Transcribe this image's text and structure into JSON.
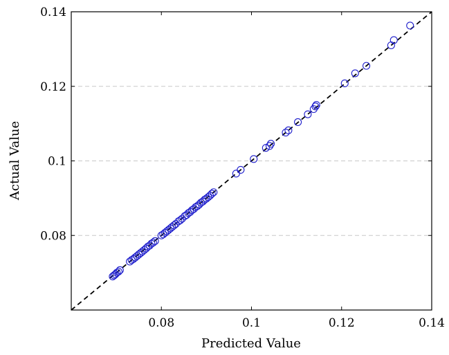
{
  "chart_data": {
    "type": "scatter",
    "xlabel": "Predicted Value",
    "ylabel": "Actual Value",
    "xlim": [
      0.06,
      0.14
    ],
    "ylim": [
      0.06,
      0.14
    ],
    "x_ticks": [
      {
        "value": 0.08,
        "label": "0.08"
      },
      {
        "value": 0.1,
        "label": "0.1"
      },
      {
        "value": 0.12,
        "label": "0.12"
      },
      {
        "value": 0.14,
        "label": "0.14"
      }
    ],
    "y_ticks": [
      {
        "value": 0.08,
        "label": "0.08"
      },
      {
        "value": 0.1,
        "label": "0.1"
      },
      {
        "value": 0.12,
        "label": "0.12"
      },
      {
        "value": 0.14,
        "label": "0.14"
      }
    ],
    "grid": "horizontal-dashed",
    "reference_line": {
      "style": "dashed",
      "from": [
        0.06,
        0.06
      ],
      "to": [
        0.14,
        0.14
      ]
    },
    "marker_color": "#1f1fcc",
    "grid_color": "#c8c8c8",
    "series": [
      {
        "points": [
          [
            0.0692,
            0.069
          ],
          [
            0.0695,
            0.0693
          ],
          [
            0.0698,
            0.0696
          ],
          [
            0.0701,
            0.07
          ],
          [
            0.0705,
            0.0703
          ],
          [
            0.0708,
            0.0707
          ],
          [
            0.073,
            0.073
          ],
          [
            0.0734,
            0.0734
          ],
          [
            0.0738,
            0.0737
          ],
          [
            0.0742,
            0.0741
          ],
          [
            0.0746,
            0.0745
          ],
          [
            0.075,
            0.0749
          ],
          [
            0.0754,
            0.0753
          ],
          [
            0.0758,
            0.0757
          ],
          [
            0.0762,
            0.0761
          ],
          [
            0.0766,
            0.0765
          ],
          [
            0.077,
            0.077
          ],
          [
            0.0774,
            0.0773
          ],
          [
            0.0778,
            0.0778
          ],
          [
            0.0782,
            0.0781
          ],
          [
            0.0786,
            0.0785
          ],
          [
            0.08,
            0.08
          ],
          [
            0.0804,
            0.0803
          ],
          [
            0.0808,
            0.0807
          ],
          [
            0.0812,
            0.0811
          ],
          [
            0.0816,
            0.0815
          ],
          [
            0.082,
            0.0819
          ],
          [
            0.0824,
            0.0823
          ],
          [
            0.0828,
            0.0827
          ],
          [
            0.0832,
            0.0831
          ],
          [
            0.0838,
            0.0838
          ],
          [
            0.0842,
            0.0841
          ],
          [
            0.0846,
            0.0845
          ],
          [
            0.0852,
            0.0852
          ],
          [
            0.0856,
            0.0855
          ],
          [
            0.086,
            0.086
          ],
          [
            0.0864,
            0.0863
          ],
          [
            0.0868,
            0.0868
          ],
          [
            0.0872,
            0.0871
          ],
          [
            0.0876,
            0.0876
          ],
          [
            0.088,
            0.0879
          ],
          [
            0.0884,
            0.0883
          ],
          [
            0.0888,
            0.0888
          ],
          [
            0.0892,
            0.0891
          ],
          [
            0.0896,
            0.0896
          ],
          [
            0.09,
            0.0899
          ],
          [
            0.0904,
            0.0903
          ],
          [
            0.0908,
            0.0907
          ],
          [
            0.0912,
            0.0912
          ],
          [
            0.0916,
            0.0916
          ],
          [
            0.0966,
            0.0966
          ],
          [
            0.0976,
            0.0976
          ],
          [
            0.1005,
            0.1005
          ],
          [
            0.1032,
            0.1035
          ],
          [
            0.104,
            0.104
          ],
          [
            0.1043,
            0.1046
          ],
          [
            0.1076,
            0.1076
          ],
          [
            0.1082,
            0.1082
          ],
          [
            0.1103,
            0.1104
          ],
          [
            0.1125,
            0.1125
          ],
          [
            0.1138,
            0.1139
          ],
          [
            0.1142,
            0.1146
          ],
          [
            0.1144,
            0.115
          ],
          [
            0.1207,
            0.1208
          ],
          [
            0.123,
            0.1235
          ],
          [
            0.1255,
            0.1255
          ],
          [
            0.131,
            0.131
          ],
          [
            0.1316,
            0.1324
          ],
          [
            0.1352,
            0.1363
          ]
        ]
      }
    ]
  }
}
